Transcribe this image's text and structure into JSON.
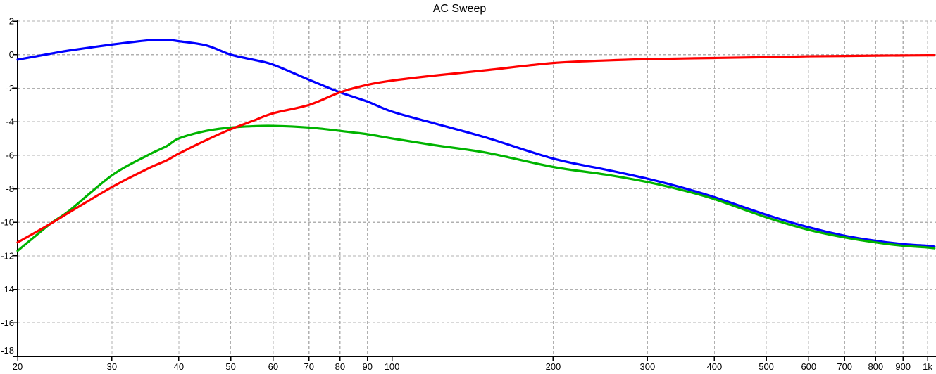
{
  "chart_data": {
    "type": "line",
    "title": "AC Sweep",
    "x_scale": "log",
    "xlim": [
      20,
      1030
    ],
    "ylim": [
      -18,
      2
    ],
    "grid": "dashed",
    "legend": "none",
    "background": "#ffffff",
    "axis_color": "#000000",
    "grid_color": "#b0b0b0",
    "x_ticks": [
      {
        "value": 20,
        "label": "20"
      },
      {
        "value": 30,
        "label": "30"
      },
      {
        "value": 40,
        "label": "40"
      },
      {
        "value": 50,
        "label": "50"
      },
      {
        "value": 60,
        "label": "60"
      },
      {
        "value": 70,
        "label": "70"
      },
      {
        "value": 80,
        "label": "80"
      },
      {
        "value": 90,
        "label": "90"
      },
      {
        "value": 100,
        "label": "100"
      },
      {
        "value": 200,
        "label": "200"
      },
      {
        "value": 300,
        "label": "300"
      },
      {
        "value": 400,
        "label": "400"
      },
      {
        "value": 500,
        "label": "500"
      },
      {
        "value": 600,
        "label": "600"
      },
      {
        "value": 700,
        "label": "700"
      },
      {
        "value": 800,
        "label": "800"
      },
      {
        "value": 900,
        "label": "900"
      },
      {
        "value": 1000,
        "label": "1k"
      }
    ],
    "y_ticks": [
      {
        "value": 2,
        "label": "2"
      },
      {
        "value": 0,
        "label": "0"
      },
      {
        "value": -2,
        "label": "-2"
      },
      {
        "value": -4,
        "label": "-4"
      },
      {
        "value": -6,
        "label": "-6"
      },
      {
        "value": -8,
        "label": "-8"
      },
      {
        "value": -10,
        "label": "-10"
      },
      {
        "value": -12,
        "label": "-12"
      },
      {
        "value": -14,
        "label": "-14"
      },
      {
        "value": -16,
        "label": "-16"
      },
      {
        "value": -18,
        "label": "-18"
      }
    ],
    "x": [
      20,
      23,
      25,
      30,
      35,
      38,
      40,
      45,
      50,
      55,
      60,
      70,
      80,
      90,
      100,
      120,
      150,
      200,
      250,
      300,
      350,
      400,
      500,
      600,
      700,
      800,
      900,
      1000,
      1030
    ],
    "series": [
      {
        "name": "blue-trace",
        "color": "#0000ff",
        "values": [
          -0.3,
          0.05,
          0.25,
          0.6,
          0.85,
          0.88,
          0.8,
          0.55,
          0.0,
          -0.3,
          -0.6,
          -1.5,
          -2.25,
          -2.8,
          -3.4,
          -4.1,
          -4.95,
          -6.2,
          -6.85,
          -7.4,
          -7.95,
          -8.5,
          -9.55,
          -10.3,
          -10.8,
          -11.1,
          -11.3,
          -11.4,
          -11.45
        ]
      },
      {
        "name": "green-trace",
        "color": "#00b400",
        "values": [
          -11.7,
          -10.1,
          -9.3,
          -7.2,
          -6.0,
          -5.45,
          -5.0,
          -4.55,
          -4.35,
          -4.27,
          -4.25,
          -4.35,
          -4.55,
          -4.75,
          -5.0,
          -5.4,
          -5.85,
          -6.7,
          -7.15,
          -7.6,
          -8.1,
          -8.62,
          -9.7,
          -10.45,
          -10.9,
          -11.2,
          -11.4,
          -11.5,
          -11.55
        ]
      },
      {
        "name": "red-trace",
        "color": "#ff0000",
        "values": [
          -11.2,
          -10.1,
          -9.4,
          -7.9,
          -6.8,
          -6.3,
          -5.9,
          -5.1,
          -4.45,
          -3.95,
          -3.5,
          -3.0,
          -2.25,
          -1.8,
          -1.55,
          -1.25,
          -0.93,
          -0.5,
          -0.35,
          -0.27,
          -0.23,
          -0.2,
          -0.15,
          -0.1,
          -0.08,
          -0.06,
          -0.05,
          -0.04,
          -0.04
        ]
      }
    ]
  }
}
